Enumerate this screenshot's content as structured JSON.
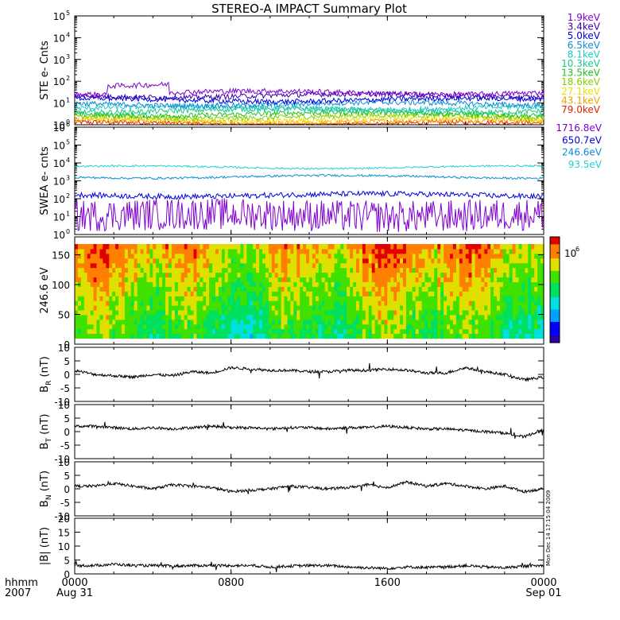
{
  "title": "STEREO-A IMPACT Summary Plot",
  "stamp": "Mon Dec 14 17:15:04 2009",
  "time_axis": {
    "row1_label": "hhmm",
    "row2_label": "2007",
    "ticks": [
      {
        "t": 0,
        "top": "0000",
        "bottom": "Aug 31"
      },
      {
        "t": 8,
        "top": "0800",
        "bottom": ""
      },
      {
        "t": 16,
        "top": "1600",
        "bottom": ""
      },
      {
        "t": 24,
        "top": "0000",
        "bottom": "Sep 01"
      }
    ],
    "range_hours": [
      0,
      24
    ]
  },
  "panels": [
    {
      "id": "ste",
      "ylabel": "STE e- Cnts",
      "type": "line-log",
      "y_decades": [
        0,
        5
      ],
      "tick_base": "10",
      "tick_exps": [
        "0",
        "1",
        "2",
        "3",
        "4",
        "5"
      ]
    },
    {
      "id": "swea",
      "ylabel": "SWEA e- cnts",
      "type": "line-log",
      "y_decades": [
        0,
        6
      ],
      "tick_base": "10",
      "tick_exps": [
        "0",
        "1",
        "2",
        "3",
        "4",
        "5",
        "6"
      ]
    },
    {
      "id": "spec",
      "ylabel": "246.6 eV",
      "type": "heatmap",
      "ylim": [
        0,
        180
      ],
      "tick_labels": [
        "0",
        "50",
        "100",
        "150"
      ],
      "colorbar_label_base": "10",
      "colorbar_label_exp": "6"
    },
    {
      "id": "br",
      "ylabel": "B",
      "ylabel_sub": "R",
      "ylabel_unit": "(nT)",
      "type": "line",
      "ylim": [
        -10,
        10
      ],
      "tick_labels": [
        "-10",
        "-5",
        "0",
        "5",
        "10"
      ]
    },
    {
      "id": "bt",
      "ylabel": "B",
      "ylabel_sub": "T",
      "ylabel_unit": "(nT)",
      "type": "line",
      "ylim": [
        -10,
        10
      ],
      "tick_labels": [
        "-10",
        "-5",
        "0",
        "5",
        "10"
      ]
    },
    {
      "id": "bn",
      "ylabel": "B",
      "ylabel_sub": "N",
      "ylabel_unit": "(nT)",
      "type": "line",
      "ylim": [
        -10,
        10
      ],
      "tick_labels": [
        "-10",
        "-5",
        "0",
        "5",
        "10"
      ]
    },
    {
      "id": "bmag",
      "ylabel": "|B| (nT)",
      "type": "line",
      "ylim": [
        0,
        20
      ],
      "tick_labels": [
        "0",
        "5",
        "10",
        "15",
        "20"
      ]
    }
  ],
  "chart_data": [
    {
      "type": "line",
      "panel": "ste",
      "yscale": "log",
      "ylim": [
        1,
        100000
      ],
      "series": [
        {
          "name": "1.9keV",
          "color": "#8000d0",
          "level": 30,
          "spike": [
            1.7,
            4.8,
            70
          ]
        },
        {
          "name": "3.4keV",
          "color": "#3a00b0",
          "level": 22
        },
        {
          "name": "5.0keV",
          "color": "#0000e0",
          "level": 14
        },
        {
          "name": "6.5keV",
          "color": "#0a8cd8",
          "level": 9
        },
        {
          "name": "8.1keV",
          "color": "#20c8c8",
          "level": 6
        },
        {
          "name": "10.3keV",
          "color": "#12c890",
          "level": 4.5
        },
        {
          "name": "13.5keV",
          "color": "#20c020",
          "level": 3.2
        },
        {
          "name": "18.6keV",
          "color": "#80d000",
          "level": 2.4
        },
        {
          "name": "27.1keV",
          "color": "#e8e000",
          "level": 1.8
        },
        {
          "name": "43.1keV",
          "color": "#f0a000",
          "level": 1.4
        },
        {
          "name": "79.0keV",
          "color": "#e02000",
          "level": 1.1
        }
      ]
    },
    {
      "type": "line",
      "panel": "swea",
      "yscale": "log",
      "ylim": [
        1,
        1000000
      ],
      "series": [
        {
          "name": "1716.8eV",
          "color": "#8000d0",
          "level": 12,
          "noise": 0.9
        },
        {
          "name": "650.7eV",
          "color": "#0000e0",
          "level": 160,
          "noise": 0.15
        },
        {
          "name": "246.6eV",
          "color": "#0a8cd8",
          "level": 1700,
          "noise": 0.06
        },
        {
          "name": "93.5eV",
          "color": "#20d0d0",
          "level": 5800,
          "noise": 0.05
        }
      ]
    },
    {
      "type": "heatmap",
      "panel": "spec",
      "x_range": [
        0,
        24
      ],
      "y_range": [
        10,
        168
      ],
      "value_scale": "log",
      "colors": [
        "#3000a0",
        "#0000ff",
        "#00a0ff",
        "#00e0e0",
        "#00e060",
        "#40e000",
        "#e0e000",
        "#ff8000",
        "#e00000"
      ]
    },
    {
      "type": "line",
      "panel": "br",
      "ylim": [
        -10,
        10
      ],
      "color": "#000000",
      "x": [
        0,
        1,
        2,
        3,
        4,
        5,
        6,
        7,
        8,
        9,
        10,
        11,
        12,
        13,
        14,
        15,
        16,
        17,
        18,
        19,
        20,
        21,
        22,
        23,
        24
      ],
      "y": [
        1.5,
        0,
        -0.5,
        -1,
        0,
        -0.5,
        1,
        0.5,
        2.5,
        2,
        1.5,
        1.5,
        1,
        1,
        1.5,
        1.5,
        2,
        1.5,
        0.5,
        0.5,
        2.5,
        1,
        0,
        -2,
        -1
      ]
    },
    {
      "type": "line",
      "panel": "bt",
      "ylim": [
        -10,
        10
      ],
      "color": "#000000",
      "x": [
        0,
        1,
        2,
        3,
        4,
        5,
        6,
        7,
        8,
        9,
        10,
        11,
        12,
        13,
        14,
        15,
        16,
        17,
        18,
        19,
        20,
        21,
        22,
        23,
        24
      ],
      "y": [
        2,
        2,
        1.5,
        1,
        1.5,
        1,
        1.5,
        2,
        1.5,
        1.5,
        1,
        1.5,
        1.5,
        1,
        1.5,
        1.5,
        2,
        1.5,
        1,
        1,
        0.5,
        0,
        -0.5,
        -2,
        1
      ]
    },
    {
      "type": "line",
      "panel": "bn",
      "ylim": [
        -10,
        10
      ],
      "color": "#000000",
      "x": [
        0,
        1,
        2,
        3,
        4,
        5,
        6,
        7,
        8,
        9,
        10,
        11,
        12,
        13,
        14,
        15,
        16,
        17,
        18,
        19,
        20,
        21,
        22,
        23,
        24
      ],
      "y": [
        1,
        1,
        2,
        1,
        0,
        1.5,
        1,
        0.5,
        -1,
        -0.5,
        0,
        1,
        0.5,
        0,
        0.5,
        1.5,
        0.5,
        2.5,
        1,
        2,
        1,
        0,
        1,
        -1,
        0
      ]
    },
    {
      "type": "line",
      "panel": "bmag",
      "ylim": [
        0,
        20
      ],
      "color": "#000000",
      "x": [
        0,
        1,
        2,
        3,
        4,
        5,
        6,
        7,
        8,
        9,
        10,
        11,
        12,
        13,
        14,
        15,
        16,
        17,
        18,
        19,
        20,
        21,
        22,
        23,
        24
      ],
      "y": [
        3,
        3,
        3.5,
        3,
        3,
        2.8,
        3,
        3,
        3,
        3,
        2.5,
        2.8,
        3,
        3,
        2.5,
        2.2,
        2,
        2.5,
        2.3,
        2.5,
        3,
        2.5,
        2.2,
        2.8,
        3
      ]
    }
  ]
}
